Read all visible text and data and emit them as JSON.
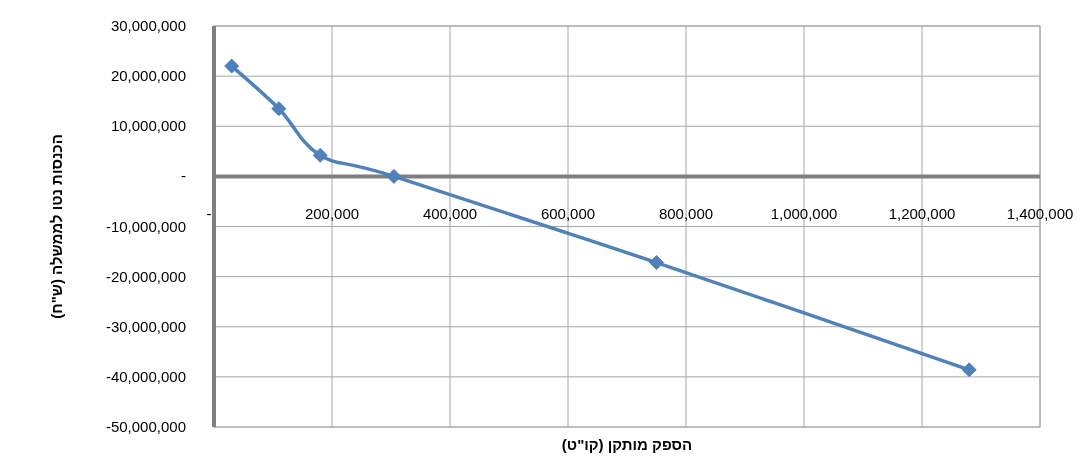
{
  "chart_data": {
    "type": "line",
    "xlabel": "הספק מותקן (קו\"ט)",
    "ylabel": "הכנסות נטו לממשלה (ש\"ח)",
    "x": [
      30000,
      110000,
      180000,
      305000,
      750000,
      1280000
    ],
    "series": [
      {
        "color": "#4f81bd",
        "values": [
          22000000,
          13500000,
          4200000,
          0,
          -17200000,
          -38600000
        ]
      }
    ],
    "xlim": [
      0,
      1400000
    ],
    "xticks": [
      {
        "value": 0,
        "label": "-"
      },
      {
        "value": 200000,
        "label": "200,000"
      },
      {
        "value": 400000,
        "label": "400,000"
      },
      {
        "value": 600000,
        "label": "600,000"
      },
      {
        "value": 800000,
        "label": "800,000"
      },
      {
        "value": 1000000,
        "label": "1,000,000"
      },
      {
        "value": 1200000,
        "label": "1,200,000"
      },
      {
        "value": 1400000,
        "label": "1,400,000"
      }
    ],
    "ylim": [
      -50000000,
      30000000
    ],
    "yticks": [
      {
        "value": -50000000,
        "label": "-50,000,000"
      },
      {
        "value": -40000000,
        "label": "-40,000,000"
      },
      {
        "value": -30000000,
        "label": "-30,000,000"
      },
      {
        "value": -20000000,
        "label": "-20,000,000"
      },
      {
        "value": -10000000,
        "label": "-10,000,000"
      },
      {
        "value": 0,
        "label": "-"
      },
      {
        "value": 10000000,
        "label": "10,000,000"
      },
      {
        "value": 20000000,
        "label": "20,000,000"
      },
      {
        "value": 30000000,
        "label": "30,000,000"
      }
    ],
    "grid": true,
    "marker": "diamond",
    "line_style": "solid"
  }
}
